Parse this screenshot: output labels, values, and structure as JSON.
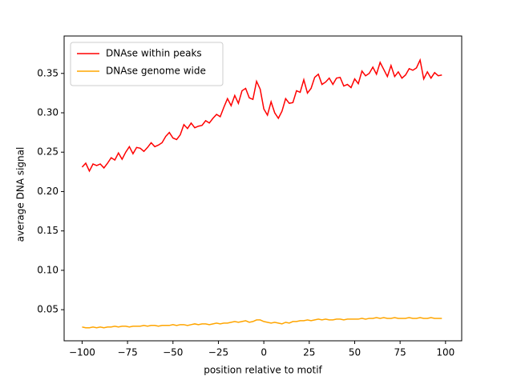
{
  "chart_data": {
    "type": "line",
    "x_label": "position relative to motif",
    "y_label": "average DNA signal",
    "x": [
      -100,
      -98,
      -96,
      -94,
      -92,
      -90,
      -88,
      -86,
      -84,
      -82,
      -80,
      -78,
      -76,
      -74,
      -72,
      -70,
      -68,
      -66,
      -64,
      -62,
      -60,
      -58,
      -56,
      -54,
      -52,
      -50,
      -48,
      -46,
      -44,
      -42,
      -40,
      -38,
      -36,
      -34,
      -32,
      -30,
      -28,
      -26,
      -24,
      -22,
      -20,
      -18,
      -16,
      -14,
      -12,
      -10,
      -8,
      -6,
      -4,
      -2,
      0,
      2,
      4,
      6,
      8,
      10,
      12,
      14,
      16,
      18,
      20,
      22,
      24,
      26,
      28,
      30,
      32,
      34,
      36,
      38,
      40,
      42,
      44,
      46,
      48,
      50,
      52,
      54,
      56,
      58,
      60,
      62,
      64,
      66,
      68,
      70,
      72,
      74,
      76,
      78,
      80,
      82,
      84,
      86,
      88,
      90,
      92,
      94,
      96,
      98
    ],
    "series": [
      {
        "name": "DNAse within peaks",
        "color": "#ff0000",
        "values": [
          0.231,
          0.236,
          0.226,
          0.235,
          0.233,
          0.235,
          0.23,
          0.236,
          0.243,
          0.24,
          0.249,
          0.241,
          0.25,
          0.257,
          0.248,
          0.256,
          0.255,
          0.251,
          0.256,
          0.262,
          0.257,
          0.259,
          0.262,
          0.27,
          0.275,
          0.268,
          0.266,
          0.272,
          0.285,
          0.28,
          0.287,
          0.281,
          0.283,
          0.284,
          0.29,
          0.287,
          0.293,
          0.298,
          0.295,
          0.307,
          0.318,
          0.309,
          0.322,
          0.312,
          0.328,
          0.331,
          0.319,
          0.317,
          0.34,
          0.33,
          0.305,
          0.297,
          0.314,
          0.3,
          0.293,
          0.302,
          0.318,
          0.312,
          0.313,
          0.328,
          0.326,
          0.342,
          0.325,
          0.331,
          0.345,
          0.349,
          0.336,
          0.339,
          0.344,
          0.336,
          0.344,
          0.345,
          0.334,
          0.336,
          0.332,
          0.343,
          0.337,
          0.353,
          0.347,
          0.35,
          0.358,
          0.349,
          0.364,
          0.355,
          0.346,
          0.36,
          0.346,
          0.352,
          0.344,
          0.348,
          0.356,
          0.354,
          0.357,
          0.367,
          0.343,
          0.352,
          0.344,
          0.351,
          0.347,
          0.348
        ]
      },
      {
        "name": "DNAse genome wide",
        "color": "#ffa500",
        "values": [
          0.028,
          0.027,
          0.027,
          0.028,
          0.027,
          0.028,
          0.027,
          0.028,
          0.028,
          0.029,
          0.028,
          0.029,
          0.029,
          0.028,
          0.029,
          0.029,
          0.029,
          0.03,
          0.029,
          0.03,
          0.03,
          0.029,
          0.03,
          0.03,
          0.03,
          0.031,
          0.03,
          0.031,
          0.031,
          0.03,
          0.031,
          0.032,
          0.031,
          0.032,
          0.032,
          0.031,
          0.032,
          0.033,
          0.032,
          0.033,
          0.033,
          0.034,
          0.035,
          0.034,
          0.035,
          0.036,
          0.034,
          0.035,
          0.037,
          0.037,
          0.035,
          0.034,
          0.033,
          0.034,
          0.033,
          0.032,
          0.034,
          0.033,
          0.035,
          0.035,
          0.036,
          0.036,
          0.037,
          0.036,
          0.037,
          0.038,
          0.037,
          0.038,
          0.037,
          0.037,
          0.038,
          0.038,
          0.037,
          0.038,
          0.038,
          0.038,
          0.038,
          0.039,
          0.038,
          0.039,
          0.039,
          0.04,
          0.039,
          0.04,
          0.039,
          0.039,
          0.04,
          0.039,
          0.039,
          0.039,
          0.04,
          0.039,
          0.039,
          0.04,
          0.039,
          0.039,
          0.04,
          0.039,
          0.039,
          0.039
        ]
      }
    ],
    "xlim": [
      -109.9,
      108.9
    ],
    "ylim": [
      0.0105,
      0.3975
    ],
    "xticks": [
      {
        "value": -100,
        "label": "−100"
      },
      {
        "value": -75,
        "label": "−75"
      },
      {
        "value": -50,
        "label": "−50"
      },
      {
        "value": -25,
        "label": "−25"
      },
      0,
      25,
      50,
      75,
      100
    ],
    "yticks": [
      0.05,
      {
        "value": 0.1,
        "label": "0.10"
      },
      0.15,
      {
        "value": 0.2,
        "label": "0.20"
      },
      0.25,
      {
        "value": 0.3,
        "label": "0.30"
      },
      0.35
    ],
    "legend": "upper left",
    "grid": false
  }
}
